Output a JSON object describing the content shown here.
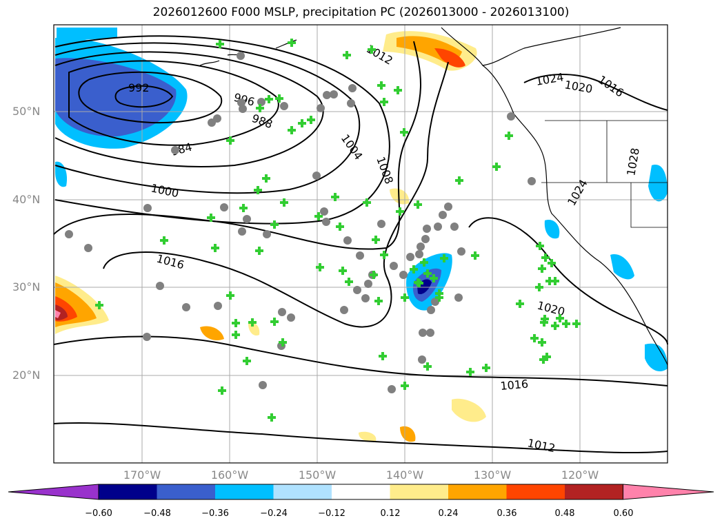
{
  "title": "2026012600 F000 MSLP, precipitation PC (2026013000 - 2026013100)",
  "lat_labels": [
    "50°N",
    "40°N",
    "30°N",
    "20°N"
  ],
  "lon_labels": [
    "170°W",
    "160°W",
    "150°W",
    "140°W",
    "130°W",
    "120°W"
  ],
  "contour_labels": [
    "992",
    "996",
    "988",
    "984",
    "1000",
    "1004",
    "1008",
    "1012",
    "1016",
    "1016",
    "1020",
    "1024",
    "1020",
    "1016",
    "1024",
    "1028",
    "1012"
  ],
  "colorbar": {
    "ticks": [
      "−0.60",
      "−0.48",
      "−0.36",
      "−0.24",
      "−0.12",
      "0.12",
      "0.24",
      "0.36",
      "0.48",
      "0.60"
    ],
    "colors": [
      "#9932cc",
      "#00008b",
      "#3a5fcd",
      "#00bfff",
      "#b0e2ff",
      "#ffffff",
      "#ffec8b",
      "#ffa500",
      "#ff4500",
      "#b22222",
      "#ff82ab"
    ]
  },
  "colors": {
    "contour": "#000000",
    "grid": "#aaaaaa",
    "marker_circle": "#808080",
    "marker_cross": "#32cd32"
  }
}
